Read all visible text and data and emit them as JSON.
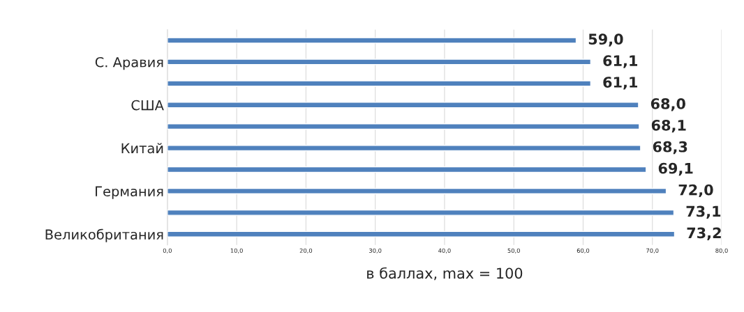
{
  "chart_data": {
    "type": "bar",
    "orientation": "horizontal",
    "categories": [
      null,
      "С. Аравия",
      null,
      "США",
      null,
      "Китай",
      null,
      "Германия",
      null,
      "Великобритания"
    ],
    "values": [
      59.0,
      61.1,
      61.1,
      68.0,
      68.1,
      68.3,
      69.1,
      72.0,
      73.1,
      73.2
    ],
    "value_labels": [
      "59,0",
      "61,1",
      "61,1",
      "68,0",
      "68,1",
      "68,3",
      "69,1",
      "72,0",
      "73,1",
      "73,2"
    ],
    "color": "#4f81bd",
    "xlabel": "в баллах, max = 100",
    "xlim": [
      0,
      80
    ],
    "xticks": [
      {
        "value": 0,
        "label": "0,0"
      },
      {
        "value": 10,
        "label": "10,0"
      },
      {
        "value": 20,
        "label": "20,0"
      },
      {
        "value": 30,
        "label": "30,0"
      },
      {
        "value": 40,
        "label": "40,0"
      },
      {
        "value": 50,
        "label": "50,0"
      },
      {
        "value": 60,
        "label": "60,0"
      },
      {
        "value": 70,
        "label": "70,0"
      },
      {
        "value": 80,
        "label": "80,0"
      }
    ],
    "grid": "x",
    "legend": false
  }
}
